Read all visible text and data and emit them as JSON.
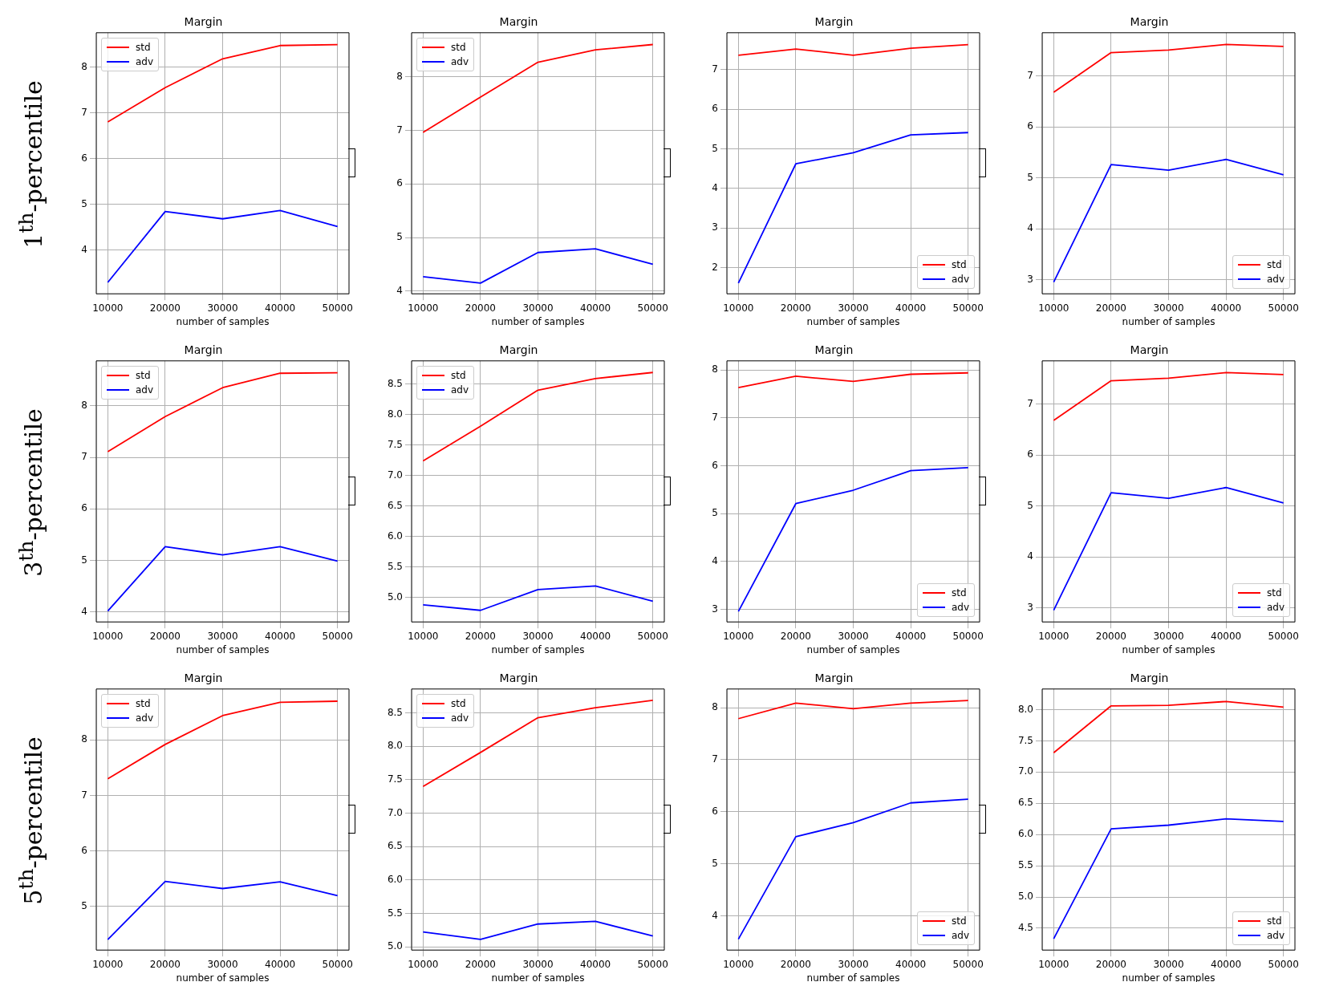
{
  "chart_data": [
    {
      "type": "line",
      "title": "Margin",
      "xlabel": "number of samples",
      "ylabel": "1$^{th}$-percentile",
      "x": [
        10000,
        20000,
        30000,
        40000,
        50000
      ],
      "xlim": [
        8000,
        52000
      ],
      "xticks": [
        10000,
        20000,
        30000,
        40000,
        50000
      ],
      "ylim": [
        3.04,
        8.75
      ],
      "yticks": [
        4,
        5,
        6,
        7,
        8
      ],
      "grid": true,
      "legend": "top left",
      "series": [
        {
          "name": "std",
          "color": "#ff0000",
          "values": [
            6.8,
            7.55,
            8.18,
            8.47,
            8.49
          ]
        },
        {
          "name": "adv",
          "color": "#0000ff",
          "values": [
            3.29,
            4.84,
            4.68,
            4.86,
            4.51
          ]
        }
      ]
    },
    {
      "type": "line",
      "title": "Margin",
      "xlabel": "number of samples",
      "x": [
        10000,
        20000,
        30000,
        40000,
        50000
      ],
      "xlim": [
        8000,
        52000
      ],
      "xticks": [
        10000,
        20000,
        30000,
        40000,
        50000
      ],
      "ylim": [
        3.95,
        8.82
      ],
      "yticks": [
        4,
        5,
        6,
        7,
        8
      ],
      "grid": true,
      "legend": "top left",
      "series": [
        {
          "name": "std",
          "color": "#ff0000",
          "values": [
            6.96,
            7.62,
            8.27,
            8.5,
            8.6
          ]
        },
        {
          "name": "adv",
          "color": "#0000ff",
          "values": [
            4.27,
            4.15,
            4.72,
            4.79,
            4.5
          ]
        }
      ]
    },
    {
      "type": "line",
      "title": "Margin",
      "xlabel": "number of samples",
      "x": [
        10000,
        20000,
        30000,
        40000,
        50000
      ],
      "xlim": [
        8000,
        52000
      ],
      "xticks": [
        10000,
        20000,
        30000,
        40000,
        50000
      ],
      "ylim": [
        1.34,
        7.93
      ],
      "yticks": [
        2,
        3,
        4,
        5,
        6,
        7
      ],
      "grid": true,
      "legend": "bottom right",
      "series": [
        {
          "name": "std",
          "color": "#ff0000",
          "values": [
            7.36,
            7.52,
            7.36,
            7.54,
            7.63
          ]
        },
        {
          "name": "adv",
          "color": "#0000ff",
          "values": [
            1.61,
            4.62,
            4.9,
            5.35,
            5.41
          ]
        }
      ]
    },
    {
      "type": "line",
      "title": "Margin",
      "xlabel": "number of samples",
      "x": [
        10000,
        20000,
        30000,
        40000,
        50000
      ],
      "xlim": [
        8000,
        52000
      ],
      "xticks": [
        10000,
        20000,
        30000,
        40000,
        50000
      ],
      "ylim": [
        2.72,
        7.85
      ],
      "yticks": [
        3,
        4,
        5,
        6,
        7
      ],
      "grid": true,
      "legend": "bottom right",
      "series": [
        {
          "name": "std",
          "color": "#ff0000",
          "values": [
            6.68,
            7.46,
            7.51,
            7.62,
            7.58
          ]
        },
        {
          "name": "adv",
          "color": "#0000ff",
          "values": [
            2.95,
            5.26,
            5.15,
            5.36,
            5.06
          ]
        }
      ]
    },
    {
      "type": "line",
      "title": "Margin",
      "xlabel": "number of samples",
      "ylabel": "3$^{th}$-percentile",
      "x": [
        10000,
        20000,
        30000,
        40000,
        50000
      ],
      "xlim": [
        8000,
        52000
      ],
      "xticks": [
        10000,
        20000,
        30000,
        40000,
        50000
      ],
      "ylim": [
        3.81,
        8.87
      ],
      "yticks": [
        4,
        5,
        6,
        7,
        8
      ],
      "grid": true,
      "legend": "top left",
      "series": [
        {
          "name": "std",
          "color": "#ff0000",
          "values": [
            7.11,
            7.79,
            8.35,
            8.63,
            8.64
          ]
        },
        {
          "name": "adv",
          "color": "#0000ff",
          "values": [
            4.02,
            5.27,
            5.11,
            5.27,
            4.99
          ]
        }
      ]
    },
    {
      "type": "line",
      "title": "Margin",
      "xlabel": "number of samples",
      "x": [
        10000,
        20000,
        30000,
        40000,
        50000
      ],
      "xlim": [
        8000,
        52000
      ],
      "xticks": [
        10000,
        20000,
        30000,
        40000,
        50000
      ],
      "ylim": [
        4.6,
        8.88
      ],
      "yticks": [
        {
          "value": 5,
          "label": "5.0"
        },
        5.5,
        {
          "value": 6,
          "label": "6.0"
        },
        6.5,
        {
          "value": 7,
          "label": "7.0"
        },
        7.5,
        {
          "value": 8,
          "label": "8.0"
        },
        8.5
      ],
      "grid": true,
      "legend": "top left",
      "series": [
        {
          "name": "std",
          "color": "#ff0000",
          "values": [
            7.24,
            7.81,
            8.4,
            8.59,
            8.69
          ]
        },
        {
          "name": "adv",
          "color": "#0000ff",
          "values": [
            4.88,
            4.79,
            5.13,
            5.19,
            4.94
          ]
        }
      ]
    },
    {
      "type": "line",
      "title": "Margin",
      "xlabel": "number of samples",
      "x": [
        10000,
        20000,
        30000,
        40000,
        50000
      ],
      "xlim": [
        8000,
        52000
      ],
      "xticks": [
        10000,
        20000,
        30000,
        40000,
        50000
      ],
      "ylim": [
        2.74,
        8.19
      ],
      "yticks": [
        3,
        4,
        5,
        6,
        7,
        8
      ],
      "grid": true,
      "legend": "bottom right",
      "series": [
        {
          "name": "std",
          "color": "#ff0000",
          "values": [
            7.63,
            7.87,
            7.76,
            7.91,
            7.94
          ]
        },
        {
          "name": "adv",
          "color": "#0000ff",
          "values": [
            2.96,
            5.21,
            5.49,
            5.9,
            5.96
          ]
        }
      ]
    },
    {
      "type": "line",
      "title": "Margin",
      "xlabel": "number of samples",
      "x": [
        10000,
        20000,
        30000,
        40000,
        50000
      ],
      "xlim": [
        8000,
        52000
      ],
      "xticks": [
        10000,
        20000,
        30000,
        40000,
        50000
      ],
      "ylim": [
        2.72,
        7.85
      ],
      "yticks": [
        3,
        4,
        5,
        6,
        7
      ],
      "grid": true,
      "legend": "bottom right",
      "series": [
        {
          "name": "std",
          "color": "#ff0000",
          "values": [
            6.68,
            7.46,
            7.51,
            7.62,
            7.58
          ]
        },
        {
          "name": "adv",
          "color": "#0000ff",
          "values": [
            2.95,
            5.26,
            5.15,
            5.36,
            5.06
          ]
        }
      ]
    },
    {
      "type": "line",
      "title": "Margin",
      "xlabel": "number of samples",
      "ylabel": "5$^{th}$-percentile",
      "x": [
        10000,
        20000,
        30000,
        40000,
        50000
      ],
      "xlim": [
        8000,
        52000
      ],
      "xticks": [
        10000,
        20000,
        30000,
        40000,
        50000
      ],
      "ylim": [
        4.21,
        8.92
      ],
      "yticks": [
        5,
        6,
        7,
        8
      ],
      "grid": true,
      "legend": "top left",
      "series": [
        {
          "name": "std",
          "color": "#ff0000",
          "values": [
            7.3,
            7.92,
            8.44,
            8.68,
            8.7
          ]
        },
        {
          "name": "adv",
          "color": "#0000ff",
          "values": [
            4.4,
            5.45,
            5.32,
            5.44,
            5.19
          ]
        }
      ]
    },
    {
      "type": "line",
      "title": "Margin",
      "xlabel": "number of samples",
      "x": [
        10000,
        20000,
        30000,
        40000,
        50000
      ],
      "xlim": [
        8000,
        52000
      ],
      "xticks": [
        10000,
        20000,
        30000,
        40000,
        50000
      ],
      "ylim": [
        4.95,
        8.86
      ],
      "yticks": [
        {
          "value": 5,
          "label": "5.0"
        },
        5.5,
        {
          "value": 6,
          "label": "6.0"
        },
        6.5,
        {
          "value": 7,
          "label": "7.0"
        },
        7.5,
        {
          "value": 8,
          "label": "8.0"
        },
        8.5
      ],
      "grid": true,
      "legend": "top left",
      "series": [
        {
          "name": "std",
          "color": "#ff0000",
          "values": [
            7.4,
            7.91,
            8.43,
            8.58,
            8.69
          ]
        },
        {
          "name": "adv",
          "color": "#0000ff",
          "values": [
            5.22,
            5.11,
            5.34,
            5.38,
            5.16
          ]
        }
      ]
    },
    {
      "type": "line",
      "title": "Margin",
      "xlabel": "number of samples",
      "x": [
        10000,
        20000,
        30000,
        40000,
        50000
      ],
      "xlim": [
        8000,
        52000
      ],
      "xticks": [
        10000,
        20000,
        30000,
        40000,
        50000
      ],
      "ylim": [
        3.34,
        8.36
      ],
      "yticks": [
        4,
        5,
        6,
        7,
        8
      ],
      "grid": true,
      "legend": "bottom right",
      "series": [
        {
          "name": "std",
          "color": "#ff0000",
          "values": [
            7.79,
            8.09,
            7.98,
            8.09,
            8.14
          ]
        },
        {
          "name": "adv",
          "color": "#0000ff",
          "values": [
            3.55,
            5.52,
            5.79,
            6.17,
            6.24
          ]
        }
      ]
    },
    {
      "type": "line",
      "title": "Margin",
      "xlabel": "number of samples",
      "x": [
        10000,
        20000,
        30000,
        40000,
        50000
      ],
      "xlim": [
        8000,
        52000
      ],
      "xticks": [
        10000,
        20000,
        30000,
        40000,
        50000
      ],
      "ylim": [
        4.15,
        8.33
      ],
      "yticks": [
        {
          "value": 4.5,
          "label": "4.5"
        },
        {
          "value": 5,
          "label": "5.0"
        },
        5.5,
        {
          "value": 6,
          "label": "6.0"
        },
        6.5,
        {
          "value": 7,
          "label": "7.0"
        },
        7.5,
        {
          "value": 8,
          "label": "8.0"
        }
      ],
      "grid": true,
      "legend": "bottom right",
      "series": [
        {
          "name": "std",
          "color": "#ff0000",
          "values": [
            7.31,
            8.06,
            8.07,
            8.13,
            8.04
          ]
        },
        {
          "name": "adv",
          "color": "#0000ff",
          "values": [
            4.33,
            6.09,
            6.15,
            6.25,
            6.21
          ]
        }
      ]
    }
  ]
}
